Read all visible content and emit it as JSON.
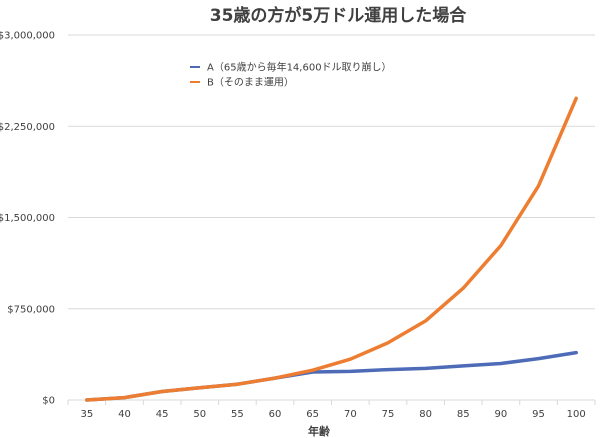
{
  "chart_data": {
    "type": "line",
    "title": "35歳の方が5万ドル運用した場合",
    "xlabel": "年齢",
    "ylabel": "",
    "x": [
      35,
      40,
      45,
      50,
      55,
      60,
      65,
      70,
      75,
      80,
      85,
      90,
      95,
      100
    ],
    "ylim": [
      0,
      3000000
    ],
    "yticks": [
      0,
      750000,
      1500000,
      2250000,
      3000000
    ],
    "ytick_labels": [
      "$0",
      "$750,000",
      "$1,500,000",
      "$2,250,000",
      "$3,000,000"
    ],
    "grid": true,
    "legend_position": "top-center",
    "series": [
      {
        "name": "A（65歳から毎年14,600ドル取り崩し）",
        "color": "#4e6bb8",
        "values": [
          0,
          20000,
          70000,
          100000,
          130000,
          180000,
          230000,
          235000,
          250000,
          260000,
          280000,
          300000,
          340000,
          390000
        ]
      },
      {
        "name": "B（そのまま運用）",
        "color": "#ed7d31",
        "values": [
          0,
          20000,
          70000,
          100000,
          130000,
          180000,
          245000,
          335000,
          470000,
          650000,
          920000,
          1270000,
          1760000,
          2480000
        ]
      }
    ]
  }
}
